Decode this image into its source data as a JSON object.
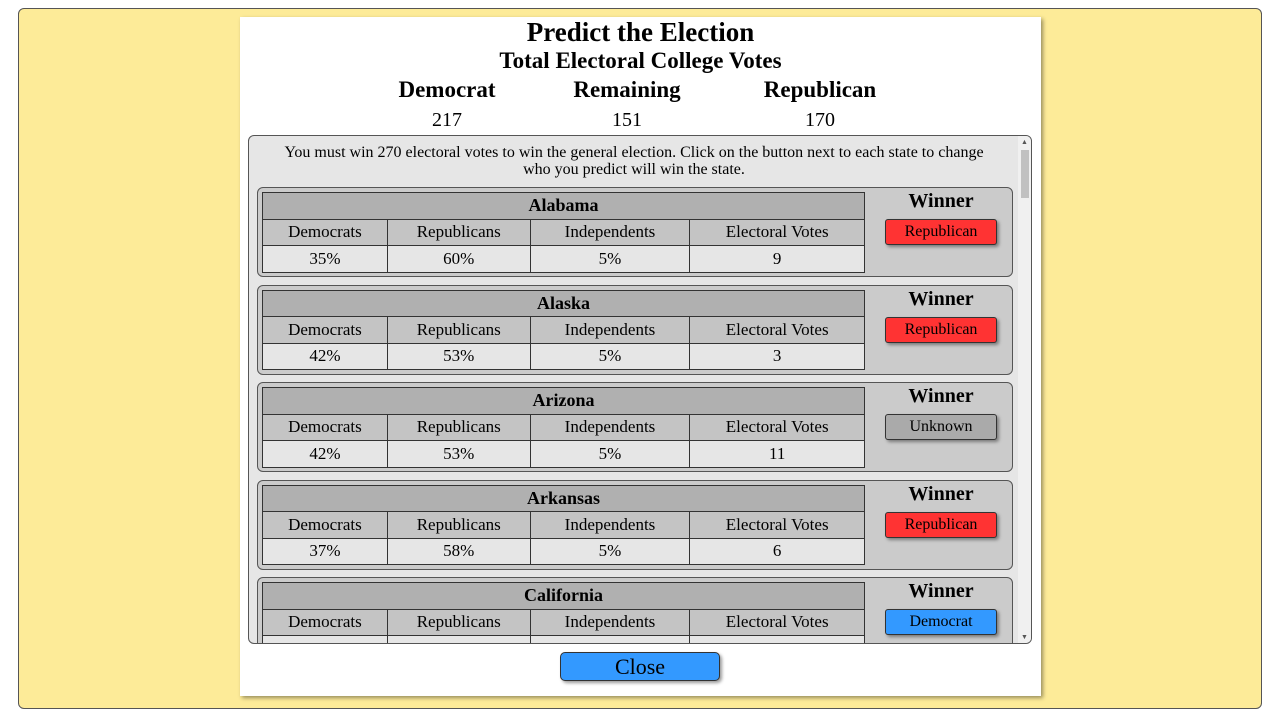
{
  "title": "Predict the Election",
  "subtitle": "Total Electoral College Votes",
  "summary": [
    {
      "label": "Democrat",
      "value": "217"
    },
    {
      "label": "Remaining",
      "value": "151"
    },
    {
      "label": "Republican",
      "value": "170"
    }
  ],
  "intro": "You must win 270 electoral votes to win the general election. Click on the button next to each state to change who you predict will win the state.",
  "columns": [
    "Democrats",
    "Republicans",
    "Independents",
    "Electoral Votes"
  ],
  "winner_label": "Winner",
  "colors": {
    "Republican": "#ff3333",
    "Democrat": "#3399ff",
    "Unknown": "#aaaaaa",
    "background": "#fdeb98"
  },
  "states": [
    {
      "name": "Alabama",
      "values": [
        "35%",
        "60%",
        "5%",
        "9"
      ],
      "winner": "Republican"
    },
    {
      "name": "Alaska",
      "values": [
        "42%",
        "53%",
        "5%",
        "3"
      ],
      "winner": "Republican"
    },
    {
      "name": "Arizona",
      "values": [
        "42%",
        "53%",
        "5%",
        "11"
      ],
      "winner": "Unknown"
    },
    {
      "name": "Arkansas",
      "values": [
        "37%",
        "58%",
        "5%",
        "6"
      ],
      "winner": "Republican"
    },
    {
      "name": "California",
      "values": [
        "",
        "",
        "",
        ""
      ],
      "winner": "Democrat"
    }
  ],
  "close_label": "Close"
}
